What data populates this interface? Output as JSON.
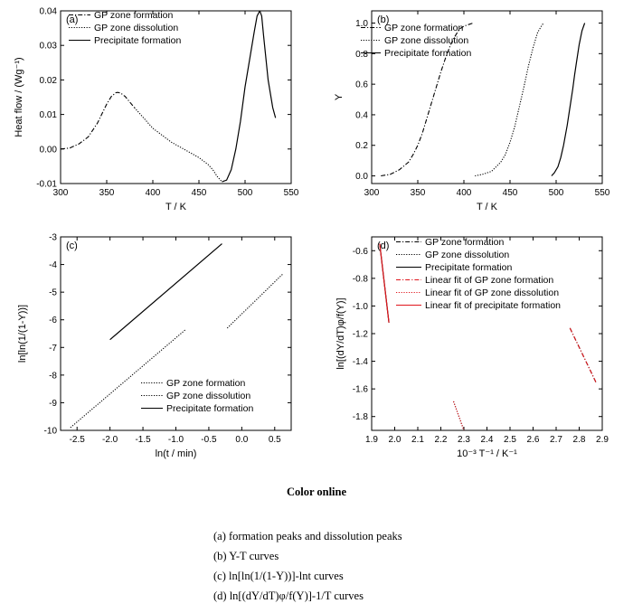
{
  "caption_title": "Color online",
  "captions": [
    "(a) formation peaks and dissolution peaks",
    "(b) Y-T curves",
    "(c) ln[ln(1/(1-Y))]-lnt curves",
    "(d) ln[(dY/dT)φ/f(Y)]-1/T curves"
  ],
  "chart_data": [
    {
      "id": "a",
      "type": "line",
      "panel_label": "(a)",
      "xlabel": "T / K",
      "ylabel": "Heat flow / (Wg⁻¹)",
      "xlim": [
        300,
        550
      ],
      "ylim": [
        -0.01,
        0.04
      ],
      "xticks": [
        "300",
        "350",
        "400",
        "450",
        "500",
        "550"
      ],
      "yticks": [
        "-0.01",
        "0.00",
        "0.01",
        "0.02",
        "0.03",
        "0.04"
      ],
      "legend_position": "top-left",
      "series": [
        {
          "name": "GP zone formation",
          "style": "dashdot",
          "x": [
            300,
            310,
            320,
            330,
            340,
            350,
            355,
            360,
            362,
            365,
            370,
            380
          ],
          "y": [
            0.0,
            0.0003,
            0.0015,
            0.0035,
            0.0075,
            0.013,
            0.0152,
            0.0163,
            0.0164,
            0.0162,
            0.0152,
            0.012
          ]
        },
        {
          "name": "GP zone dissolution",
          "style": "dotted",
          "x": [
            380,
            390,
            400,
            410,
            420,
            430,
            440,
            450,
            460,
            465,
            470,
            475
          ],
          "y": [
            0.012,
            0.009,
            0.006,
            0.004,
            0.002,
            0.0005,
            -0.001,
            -0.0025,
            -0.0045,
            -0.006,
            -0.008,
            -0.0095
          ]
        },
        {
          "name": "Precipitate formation",
          "style": "solid",
          "x": [
            475,
            480,
            485,
            490,
            495,
            500,
            505,
            510,
            513,
            516,
            518,
            520,
            525,
            530,
            533
          ],
          "y": [
            -0.0095,
            -0.009,
            -0.006,
            0.0,
            0.008,
            0.018,
            0.026,
            0.034,
            0.0385,
            0.04,
            0.0385,
            0.033,
            0.02,
            0.012,
            0.009
          ]
        }
      ]
    },
    {
      "id": "b",
      "type": "line",
      "panel_label": "(b)",
      "xlabel": "T / K",
      "ylabel": "Y",
      "xlim": [
        300,
        550
      ],
      "ylim": [
        -0.05,
        1.08
      ],
      "xticks": [
        "300",
        "350",
        "400",
        "450",
        "500",
        "550"
      ],
      "yticks": [
        "0.0",
        "0.2",
        "0.4",
        "0.6",
        "0.8",
        "1.0"
      ],
      "legend_position": "top-left",
      "series": [
        {
          "name": "GP zone formation",
          "style": "dashdot",
          "x": [
            310,
            320,
            330,
            340,
            345,
            350,
            355,
            360,
            365,
            370,
            375,
            380,
            385,
            390,
            395,
            400,
            405,
            410
          ],
          "y": [
            0.0,
            0.01,
            0.04,
            0.09,
            0.14,
            0.2,
            0.28,
            0.38,
            0.48,
            0.58,
            0.68,
            0.77,
            0.85,
            0.91,
            0.96,
            0.98,
            0.99,
            1.0
          ]
        },
        {
          "name": "GP zone dissolution",
          "style": "dotted",
          "x": [
            412,
            420,
            430,
            440,
            445,
            450,
            455,
            460,
            465,
            470,
            475,
            480,
            485,
            487
          ],
          "y": [
            0.0,
            0.01,
            0.03,
            0.09,
            0.14,
            0.22,
            0.32,
            0.45,
            0.58,
            0.72,
            0.84,
            0.94,
            0.99,
            1.0
          ]
        },
        {
          "name": "Precipitate formation",
          "style": "solid",
          "x": [
            495,
            498,
            502,
            505,
            508,
            512,
            515,
            518,
            520,
            522,
            525,
            528,
            531
          ],
          "y": [
            0.0,
            0.02,
            0.06,
            0.12,
            0.2,
            0.33,
            0.45,
            0.57,
            0.66,
            0.74,
            0.86,
            0.95,
            1.0
          ]
        }
      ]
    },
    {
      "id": "c",
      "type": "line",
      "panel_label": "(c)",
      "xlabel": "ln(t / min)",
      "ylabel": "ln[ln(1/(1-Y))]",
      "xlim": [
        -2.75,
        0.75
      ],
      "ylim": [
        -10,
        -3
      ],
      "xticks": [
        "-2.5",
        "-2.0",
        "-1.5",
        "-1.0",
        "-0.5",
        "0.0",
        "0.5"
      ],
      "yticks": [
        "-10",
        "-9",
        "-8",
        "-7",
        "-6",
        "-5",
        "-4",
        "-3"
      ],
      "legend_position": "bottom-right",
      "series": [
        {
          "name": "GP zone formation",
          "style": "dotted",
          "x": [
            -2.6,
            -0.85
          ],
          "y": [
            -9.9,
            -6.35
          ]
        },
        {
          "name": "GP zone dissolution",
          "style": "dotted",
          "x": [
            -0.22,
            0.62
          ],
          "y": [
            -6.3,
            -4.35
          ]
        },
        {
          "name": "Precipitate formation",
          "style": "solid",
          "x": [
            -2.0,
            -0.3
          ],
          "y": [
            -6.72,
            -3.25
          ]
        }
      ]
    },
    {
      "id": "d",
      "type": "line",
      "panel_label": "(d)",
      "xlabel": "10⁻³ T⁻¹ / K⁻¹",
      "ylabel": "ln[(dY/dT)φ/f(Y)]",
      "xlim": [
        1.9,
        2.9
      ],
      "ylim": [
        -1.9,
        -0.5
      ],
      "xticks": [
        "1.9",
        "2.0",
        "2.1",
        "2.2",
        "2.3",
        "2.4",
        "2.5",
        "2.6",
        "2.7",
        "2.8",
        "2.9"
      ],
      "yticks": [
        "-1.8",
        "-1.6",
        "-1.4",
        "-1.2",
        "-1.0",
        "-0.8",
        "-0.6"
      ],
      "legend_position": "top-right",
      "series": [
        {
          "name": "GP zone formation",
          "style": "dashdot",
          "color": "#000000",
          "x": [
            2.76,
            2.875
          ],
          "y": [
            -1.16,
            -1.56
          ]
        },
        {
          "name": "GP zone dissolution",
          "style": "dotted",
          "color": "#000000",
          "x": [
            2.255,
            2.3
          ],
          "y": [
            -1.69,
            -1.9
          ]
        },
        {
          "name": "Precipitate formation",
          "style": "solid",
          "color": "#000000",
          "x": [
            1.935,
            1.975
          ],
          "y": [
            -0.55,
            -1.12
          ]
        },
        {
          "name": "Linear fit of GP zone formation",
          "style": "dashdot",
          "color": "#e0151b",
          "x": [
            2.76,
            2.875
          ],
          "y": [
            -1.16,
            -1.56
          ]
        },
        {
          "name": "Linear fit of GP zone dissolution",
          "style": "dotted",
          "color": "#e0151b",
          "x": [
            2.255,
            2.3
          ],
          "y": [
            -1.69,
            -1.9
          ]
        },
        {
          "name": "Linear fit of precipitate formation",
          "style": "solid",
          "color": "#e0151b",
          "x": [
            1.935,
            1.975
          ],
          "y": [
            -0.55,
            -1.12
          ]
        }
      ]
    }
  ]
}
